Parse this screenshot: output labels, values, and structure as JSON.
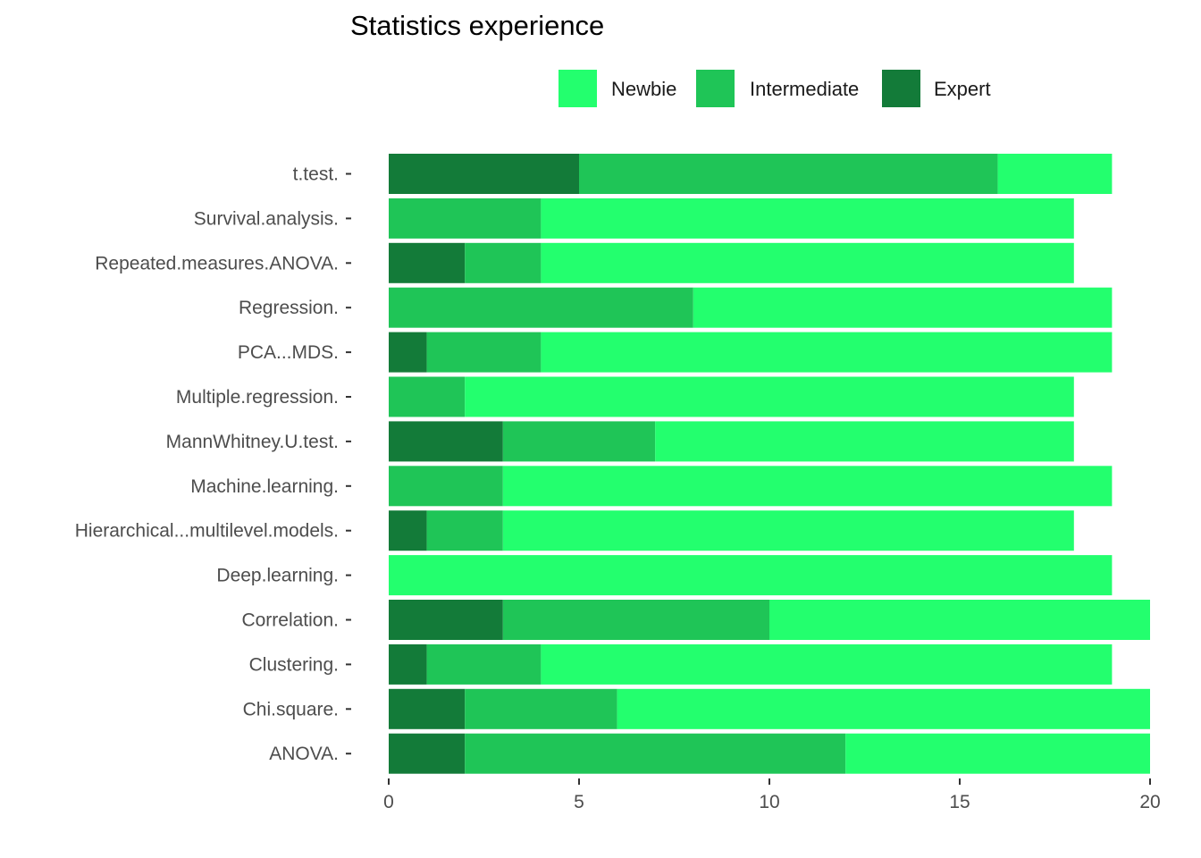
{
  "chart_data": {
    "type": "bar",
    "orientation": "horizontal",
    "stacked": true,
    "title": "Statistics experience",
    "xlabel": "",
    "ylabel": "",
    "xlim": [
      0,
      20
    ],
    "x_ticks": [
      0,
      5,
      10,
      15,
      20
    ],
    "grid": false,
    "legend_position": "top",
    "categories": [
      "t.test.",
      "Survival.analysis.",
      "Repeated.measures.ANOVA.",
      "Regression.",
      "PCA...MDS.",
      "Multiple.regression.",
      "MannWhitney.U.test.",
      "Machine.learning.",
      "Hierarchical...multilevel.models.",
      "Deep.learning.",
      "Correlation.",
      "Clustering.",
      "Chi.square.",
      "ANOVA."
    ],
    "series": [
      {
        "name": "Expert",
        "color": "#137b39",
        "values": [
          5,
          0,
          2,
          0,
          1,
          0,
          3,
          0,
          1,
          0,
          3,
          1,
          2,
          2
        ]
      },
      {
        "name": "Intermediate",
        "color": "#1fc557",
        "values": [
          11,
          4,
          2,
          8,
          3,
          2,
          4,
          3,
          2,
          0,
          7,
          3,
          4,
          10
        ]
      },
      {
        "name": "Newbie",
        "color": "#23ff6e",
        "values": [
          3,
          14,
          14,
          11,
          15,
          16,
          11,
          16,
          15,
          19,
          10,
          15,
          14,
          8
        ]
      }
    ],
    "legend_order": [
      "Newbie",
      "Intermediate",
      "Expert"
    ]
  }
}
